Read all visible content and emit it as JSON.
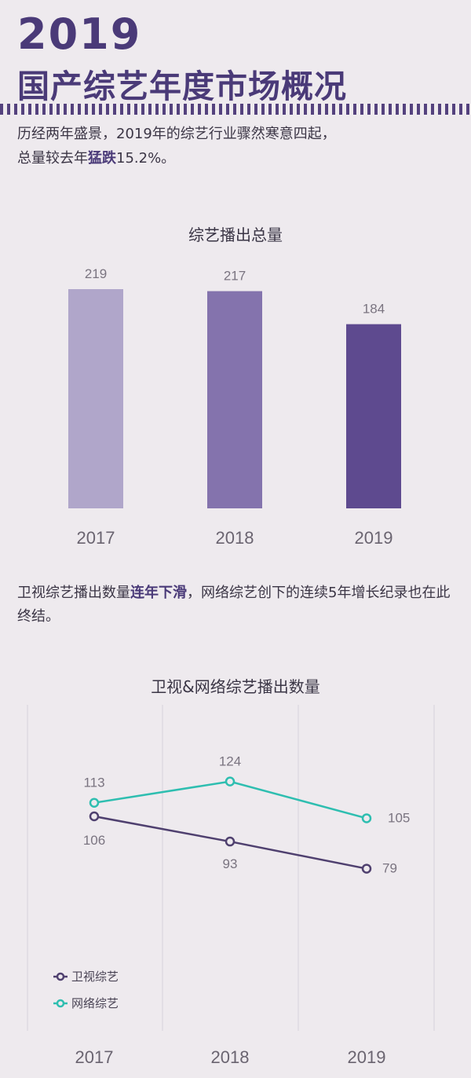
{
  "header": {
    "year": "2019",
    "title": "国产综艺年度市场概况"
  },
  "intro": {
    "line1": "历经两年盛景，2019年的综艺行业骤然寒意四起，",
    "line2_prefix": "总量较去年",
    "line2_bold": "猛跌",
    "line2_suffix": "15.2%。"
  },
  "paragraph2": {
    "part1": "卫视综艺播出数量",
    "part1_bold": "连年下滑",
    "part2": "，网络综艺创下的连续5年增长纪录也在此终结。"
  },
  "colors": {
    "bar2017": "#b0a6ca",
    "bar2018": "#8473ad",
    "bar2019": "#5e4a8f",
    "satellite": "#4f406f",
    "online": "#2ebeb0"
  },
  "chart_data": [
    {
      "type": "bar",
      "title": "综艺播出总量",
      "categories": [
        "2017",
        "2018",
        "2019"
      ],
      "values": [
        219,
        217,
        184
      ],
      "value_labels": [
        "219",
        "217",
        "184"
      ],
      "ylim": [
        0,
        219
      ],
      "grid": false,
      "legend": "none"
    },
    {
      "type": "line",
      "title": "卫视&网络综艺播出数量",
      "x": [
        "2017",
        "2018",
        "2019"
      ],
      "series": [
        {
          "name": "卫视综艺",
          "values": [
            106,
            93,
            79
          ],
          "labels": [
            "106",
            "93",
            "79"
          ]
        },
        {
          "name": "网络综艺",
          "values": [
            113,
            124,
            105
          ],
          "labels": [
            "113",
            "124",
            "105"
          ]
        }
      ],
      "ylim": [
        60,
        130
      ],
      "grid": "vertical",
      "legend": "bottom-left"
    }
  ]
}
